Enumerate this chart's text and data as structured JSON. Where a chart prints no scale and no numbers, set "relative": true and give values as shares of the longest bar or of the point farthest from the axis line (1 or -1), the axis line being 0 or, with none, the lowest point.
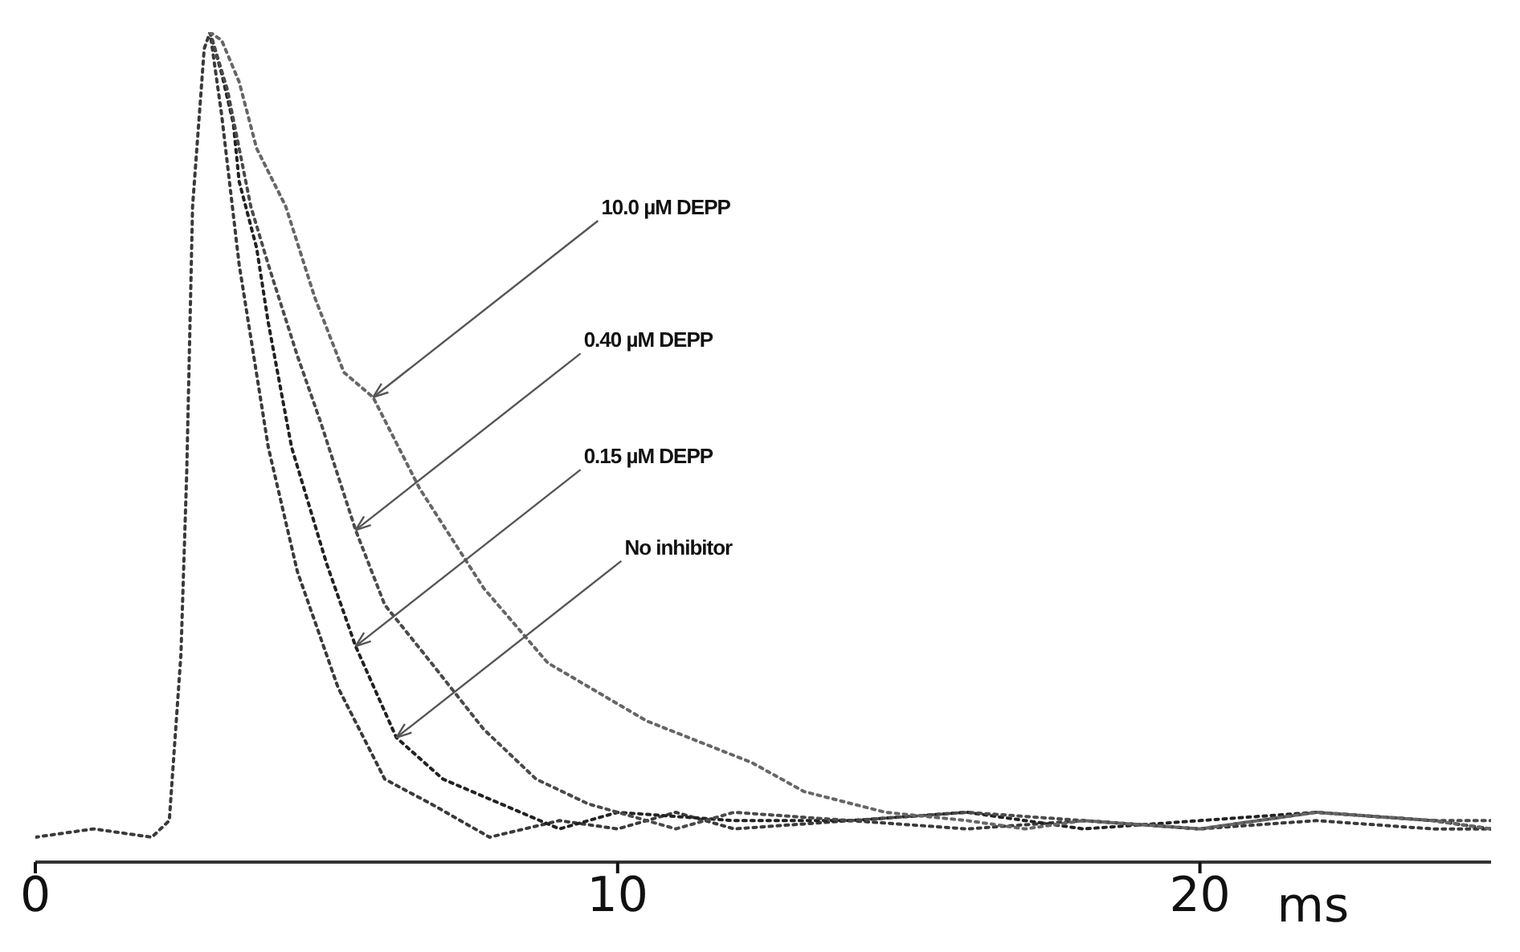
{
  "chart_data": {
    "type": "line",
    "relative": true,
    "xlabel": "ms",
    "xlim": [
      0,
      25
    ],
    "xticks": [
      0,
      10,
      20
    ],
    "tick_labels": "x",
    "marker": "none",
    "line_style": "dotted",
    "series": [
      {
        "color": "#3a3a3a",
        "x": [
          0,
          1,
          2,
          2.3,
          2.5,
          2.6,
          2.7,
          2.9,
          3.0,
          3.2,
          3.5,
          4.0,
          4.5,
          5.2,
          6.0,
          6.8,
          7.8,
          9,
          10,
          11,
          12,
          14,
          16,
          18,
          20,
          22,
          24,
          25
        ],
        "values": [
          0.03,
          0.04,
          0.03,
          0.05,
          0.25,
          0.47,
          0.79,
          0.98,
          1.0,
          0.9,
          0.72,
          0.5,
          0.35,
          0.21,
          0.1,
          0.07,
          0.03,
          0.05,
          0.04,
          0.06,
          0.04,
          0.05,
          0.04,
          0.05,
          0.04,
          0.05,
          0.04,
          0.04
        ]
      },
      {
        "color": "#222222",
        "x": [
          3.0,
          3.2,
          3.4,
          3.5,
          3.8,
          4.0,
          4.4,
          5.0,
          5.5,
          6.2,
          7.0,
          8.0,
          9.0,
          10,
          12,
          14,
          16,
          18,
          20,
          22,
          24,
          25
        ],
        "values": [
          1.0,
          0.95,
          0.89,
          0.82,
          0.74,
          0.65,
          0.5,
          0.36,
          0.26,
          0.15,
          0.1,
          0.07,
          0.04,
          0.06,
          0.05,
          0.05,
          0.06,
          0.04,
          0.05,
          0.06,
          0.05,
          0.04
        ]
      },
      {
        "color": "#4a4a4a",
        "x": [
          3.0,
          3.3,
          3.7,
          4.0,
          4.5,
          4.9,
          5.5,
          6.0,
          6.8,
          7.7,
          8.6,
          9.5,
          11,
          12,
          14,
          16,
          18,
          20,
          22,
          24,
          25
        ],
        "values": [
          1.0,
          0.93,
          0.79,
          0.72,
          0.61,
          0.53,
          0.4,
          0.31,
          0.24,
          0.16,
          0.1,
          0.07,
          0.04,
          0.06,
          0.05,
          0.06,
          0.05,
          0.04,
          0.06,
          0.05,
          0.05
        ]
      },
      {
        "color": "#666666",
        "x": [
          3.0,
          3.2,
          3.5,
          3.8,
          4.3,
          4.8,
          5.3,
          5.8,
          6.6,
          7.7,
          8.8,
          10.5,
          12.3,
          13.2,
          14.6,
          16,
          17,
          18,
          20,
          22,
          24,
          25
        ],
        "values": [
          1.0,
          0.99,
          0.94,
          0.86,
          0.79,
          0.68,
          0.59,
          0.56,
          0.45,
          0.33,
          0.24,
          0.17,
          0.12,
          0.085,
          0.06,
          0.05,
          0.04,
          0.05,
          0.04,
          0.06,
          0.05,
          0.04
        ]
      }
    ],
    "annotations": [
      {
        "text": "10.0 µM DEPP",
        "x": 5.8,
        "y": 0.56
      },
      {
        "text": "0.40 µM DEPP",
        "x": 5.5,
        "y": 0.4
      },
      {
        "text": "0.15 µM DEPP",
        "x": 5.5,
        "y": 0.26
      },
      {
        "text": "No inhibitor",
        "x": 6.2,
        "y": 0.15
      }
    ]
  }
}
